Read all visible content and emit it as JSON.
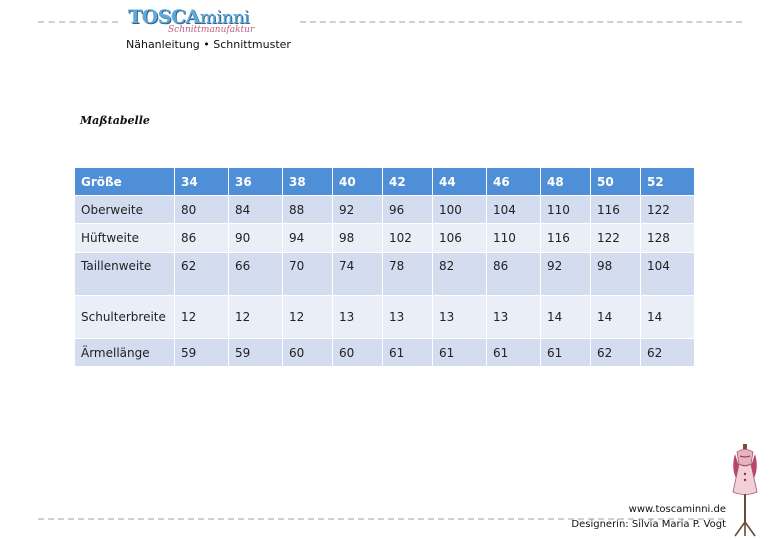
{
  "header": {
    "logo_main": "TOSCA",
    "logo_main_lower": "minni",
    "logo_sub": "Schnittmanufaktur",
    "subtitle": "Nähanleitung • Schnittmuster"
  },
  "document": {
    "heading": "Maßtabelle"
  },
  "table": {
    "header": [
      "Größe",
      "34",
      "36",
      "38",
      "40",
      "42",
      "44",
      "46",
      "48",
      "50",
      "52"
    ],
    "rows": [
      [
        "Oberweite",
        "80",
        "84",
        "88",
        "92",
        "96",
        "100",
        "104",
        "110",
        "116",
        "122"
      ],
      [
        "Hüftweite",
        "86",
        "90",
        "94",
        "98",
        "102",
        "106",
        "110",
        "116",
        "122",
        "128"
      ],
      [
        "Taillenweite",
        "62",
        "66",
        "70",
        "74",
        "78",
        "82",
        "86",
        "92",
        "98",
        "104"
      ],
      [
        "Schulterbreite",
        "12",
        "12",
        "12",
        "13",
        "13",
        "13",
        "13",
        "14",
        "14",
        "14"
      ],
      [
        "Ärmellänge",
        "59",
        "59",
        "60",
        "60",
        "61",
        "61",
        "61",
        "61",
        "62",
        "62"
      ]
    ]
  },
  "footer": {
    "website": "www.toscaminni.de",
    "designer": "Designerin: Silvia Maria P. Vogt"
  },
  "colors": {
    "header_blue": "#4f8fd8",
    "row_dark": "#d3ddef",
    "row_light": "#e9eef7",
    "logo_blue": "#5fa8dc",
    "logo_pink": "#c0607f"
  },
  "icons": {
    "mannequin": "dress-form-mannequin-icon"
  }
}
